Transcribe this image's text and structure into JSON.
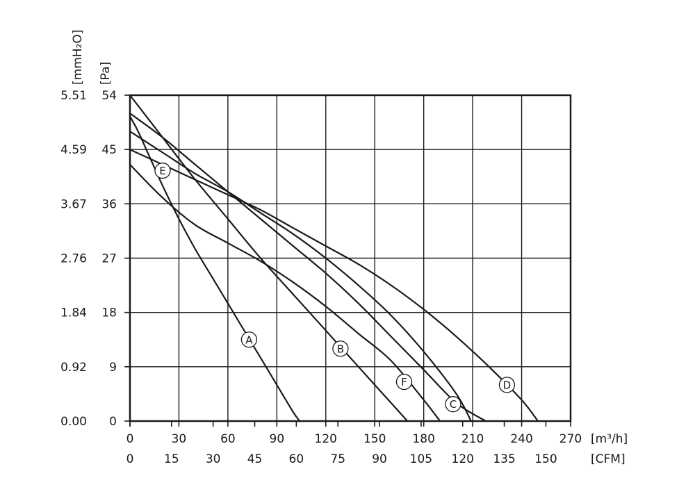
{
  "chart_data": {
    "type": "line",
    "title": "",
    "xlabel_primary": "[m³/h]",
    "xlabel_secondary": "[CFM]",
    "ylabel_primary": "[Pa]",
    "ylabel_secondary": "[mmH₂O]",
    "xlim": [
      0,
      270
    ],
    "ylim": [
      0,
      54
    ],
    "x_ticks": [
      "0",
      "30",
      "60",
      "90",
      "120",
      "150",
      "180",
      "210",
      "240",
      "270"
    ],
    "x_ticks_secondary": [
      "0",
      "15",
      "30",
      "45",
      "60",
      "75",
      "90",
      "105",
      "120",
      "135",
      "150"
    ],
    "y_ticks": [
      "0",
      "9",
      "18",
      "27",
      "36",
      "45",
      "54"
    ],
    "y_ticks_secondary": [
      "0.00",
      "0.92",
      "1.84",
      "2.76",
      "3.67",
      "4.59",
      "5.51"
    ],
    "grid": true,
    "legend": "inline circled letters",
    "series": [
      {
        "name": "A",
        "x": [
          0,
          5,
          10,
          15,
          20,
          30,
          40,
          50,
          60,
          70,
          80,
          90,
          100,
          104
        ],
        "y": [
          50.5,
          48,
          45,
          42,
          39,
          33.5,
          28.5,
          24,
          19.5,
          15,
          10.5,
          6,
          1.5,
          0
        ],
        "label_at": [
          73,
          13.5
        ]
      },
      {
        "name": "B",
        "x": [
          0,
          20,
          40,
          60,
          80,
          100,
          120,
          140,
          160,
          170
        ],
        "y": [
          54,
          47,
          40,
          33.5,
          27,
          21,
          15,
          9,
          3,
          0
        ],
        "label_at": [
          129,
          12
        ]
      },
      {
        "name": "C",
        "x": [
          0,
          20,
          40,
          60,
          80,
          100,
          120,
          140,
          160,
          180,
          200,
          209
        ],
        "y": [
          48,
          44.5,
          41,
          38,
          34.5,
          31,
          27,
          22.5,
          17.5,
          11.5,
          4.5,
          0
        ],
        "label_at": [
          198,
          2.8
        ]
      },
      {
        "name": "D",
        "x": [
          0,
          20,
          40,
          60,
          80,
          100,
          120,
          140,
          160,
          180,
          200,
          220,
          240,
          250
        ],
        "y": [
          45,
          42.5,
          40,
          37.5,
          35,
          32,
          29,
          26,
          22.5,
          18.5,
          14,
          9,
          3.5,
          0
        ],
        "label_at": [
          231,
          6
        ]
      },
      {
        "name": "E",
        "x": [
          0,
          20,
          40,
          60,
          80,
          100,
          120,
          140,
          160,
          180,
          190
        ],
        "y": [
          42.5,
          37,
          32.5,
          29.5,
          26.5,
          23,
          19,
          14.5,
          10,
          3.5,
          0
        ],
        "label_at": [
          20,
          41.5
        ]
      },
      {
        "name": "F",
        "x": [
          0,
          20,
          40,
          60,
          80,
          100,
          120,
          140,
          160,
          180,
          200,
          218
        ],
        "y": [
          51,
          47,
          42.5,
          38,
          33.5,
          29,
          24.5,
          19.5,
          14,
          8.5,
          3,
          0
        ],
        "label_at": [
          168,
          6.5
        ]
      }
    ]
  }
}
